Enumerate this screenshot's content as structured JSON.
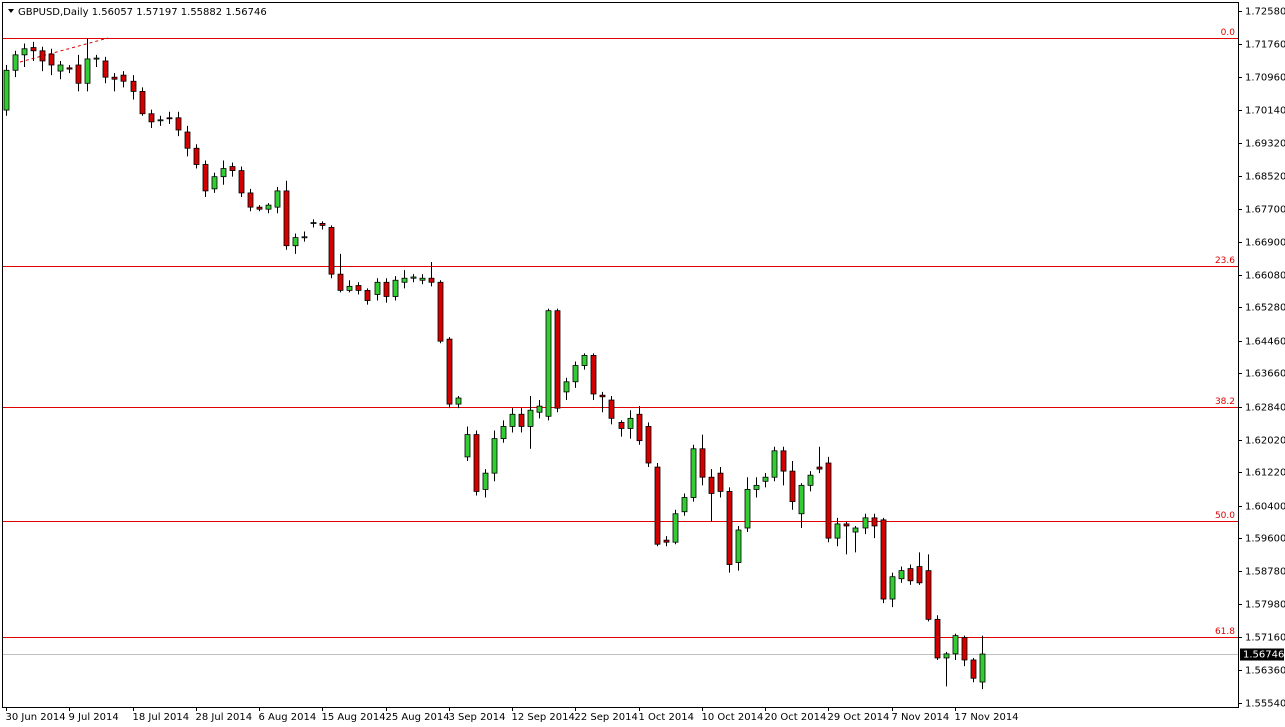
{
  "chart_data": {
    "type": "candlestick",
    "title": "GBPUSD,Daily",
    "header_values": [
      1.56057,
      1.57197,
      1.55882,
      1.56746
    ],
    "categories": [
      "30 Jun 2014",
      null,
      null,
      null,
      null,
      null,
      null,
      "9 Jul 2014",
      null,
      null,
      null,
      null,
      null,
      null,
      "18 Jul 2014",
      null,
      null,
      null,
      null,
      null,
      null,
      "28 Jul 2014",
      null,
      null,
      null,
      null,
      null,
      null,
      "6 Aug 2014",
      null,
      null,
      null,
      null,
      null,
      null,
      "15 Aug 2014",
      null,
      null,
      null,
      null,
      null,
      null,
      "25 Aug 2014",
      null,
      null,
      null,
      null,
      null,
      null,
      "3 Sep 2014",
      null,
      null,
      null,
      null,
      null,
      null,
      "12 Sep 2014",
      null,
      null,
      null,
      null,
      null,
      null,
      "22 Sep 2014",
      null,
      null,
      null,
      null,
      null,
      null,
      "1 Oct 2014",
      null,
      null,
      null,
      null,
      null,
      null,
      "10 Oct 2014",
      null,
      null,
      null,
      null,
      null,
      null,
      "20 Oct 2014",
      null,
      null,
      null,
      null,
      null,
      null,
      "29 Oct 2014",
      null,
      null,
      null,
      null,
      null,
      null,
      "7 Nov 2014",
      null,
      null,
      null,
      null,
      null,
      null,
      "17 Nov 2014",
      null,
      null,
      null
    ],
    "open": [
      1.7014,
      1.7112,
      1.715,
      1.7168,
      1.716,
      1.7152,
      1.711,
      1.7118,
      1.7125,
      1.708,
      1.714,
      1.7135,
      1.7095,
      1.71,
      1.7085,
      1.706,
      1.7005,
      1.6988,
      1.6995,
      1.6995,
      1.696,
      1.692,
      1.688,
      1.682,
      1.685,
      1.6875,
      1.6865,
      1.681,
      1.6775,
      1.677,
      1.6775,
      1.6815,
      1.668,
      1.67,
      1.6735,
      1.6735,
      1.6725,
      1.661,
      1.657,
      1.6582,
      1.657,
      1.656,
      1.659,
      1.6555,
      1.659,
      1.66,
      1.6595,
      1.66,
      1.659,
      1.645,
      1.629,
      1.616,
      1.6215,
      1.608,
      1.612,
      1.6205,
      1.6235,
      1.6265,
      1.6235,
      1.627,
      1.626,
      1.652,
      1.632,
      1.6345,
      1.6385,
      1.641,
      1.6312,
      1.63,
      1.6245,
      1.623,
      1.6265,
      1.6235,
      1.6135,
      1.5955,
      1.595,
      1.6025,
      1.606,
      1.618,
      1.611,
      1.612,
      1.6075,
      1.59,
      1.5985,
      1.608,
      1.61,
      1.611,
      1.6175,
      1.6125,
      1.602,
      1.609,
      1.6135,
      1.6145,
      1.596,
      1.5995,
      1.5975,
      1.5985,
      1.601,
      1.6005,
      1.581,
      1.586,
      1.5885,
      1.589,
      1.588,
      1.576,
      1.5665,
      1.5675,
      1.5715,
      1.566,
      1.56057
    ],
    "high": [
      1.7125,
      1.716,
      1.7178,
      1.7182,
      1.717,
      1.7165,
      1.7135,
      1.7125,
      1.715,
      1.7191,
      1.715,
      1.7145,
      1.7105,
      1.711,
      1.71,
      1.707,
      1.7015,
      1.7,
      1.701,
      1.701,
      1.6975,
      1.693,
      1.689,
      1.686,
      1.689,
      1.6885,
      1.6875,
      1.682,
      1.678,
      1.6785,
      1.6825,
      1.684,
      1.671,
      1.6715,
      1.6745,
      1.674,
      1.673,
      1.666,
      1.6595,
      1.659,
      1.6575,
      1.66,
      1.66,
      1.6605,
      1.662,
      1.661,
      1.661,
      1.664,
      1.6595,
      1.6455,
      1.631,
      1.6235,
      1.6225,
      1.613,
      1.6225,
      1.625,
      1.628,
      1.628,
      1.631,
      1.63,
      1.6525,
      1.6525,
      1.6355,
      1.6395,
      1.6415,
      1.6415,
      1.632,
      1.631,
      1.625,
      1.6275,
      1.6285,
      1.6245,
      1.6145,
      1.5965,
      1.603,
      1.607,
      1.619,
      1.6215,
      1.613,
      1.6135,
      1.6085,
      1.599,
      1.611,
      1.611,
      1.612,
      1.6185,
      1.6185,
      1.615,
      1.6095,
      1.6125,
      1.6185,
      1.616,
      1.601,
      1.6,
      1.599,
      1.602,
      1.602,
      1.601,
      1.5875,
      1.589,
      1.5895,
      1.5925,
      1.592,
      1.577,
      1.568,
      1.5725,
      1.572,
      1.5665,
      1.57197
    ],
    "low": [
      1.7,
      1.7095,
      1.712,
      1.7135,
      1.711,
      1.71,
      1.709,
      1.7105,
      1.706,
      1.706,
      1.712,
      1.708,
      1.706,
      1.707,
      1.704,
      1.7,
      1.697,
      1.6975,
      1.698,
      1.695,
      1.69,
      1.687,
      1.68,
      1.681,
      1.683,
      1.685,
      1.68,
      1.6765,
      1.6765,
      1.676,
      1.676,
      1.667,
      1.666,
      1.669,
      1.6725,
      1.672,
      1.66,
      1.6565,
      1.6565,
      1.656,
      1.6535,
      1.6545,
      1.654,
      1.6545,
      1.6575,
      1.659,
      1.6585,
      1.658,
      1.644,
      1.628,
      1.628,
      1.615,
      1.6065,
      1.606,
      1.61,
      1.6195,
      1.622,
      1.622,
      1.618,
      1.6255,
      1.625,
      1.627,
      1.63,
      1.633,
      1.6375,
      1.63,
      1.627,
      1.624,
      1.621,
      1.6205,
      1.619,
      1.6135,
      1.594,
      1.594,
      1.5945,
      1.6015,
      1.605,
      1.609,
      1.6,
      1.606,
      1.5875,
      1.588,
      1.5975,
      1.606,
      1.6085,
      1.61,
      1.609,
      1.603,
      1.5985,
      1.6075,
      1.612,
      1.595,
      1.594,
      1.592,
      1.5925,
      1.597,
      1.596,
      1.58,
      1.579,
      1.585,
      1.5845,
      1.5845,
      1.5755,
      1.566,
      1.5595,
      1.566,
      1.5645,
      1.5605,
      1.55882
    ],
    "close": [
      1.7112,
      1.715,
      1.7165,
      1.716,
      1.7135,
      1.7125,
      1.7125,
      1.7115,
      1.708,
      1.714,
      1.7142,
      1.7095,
      1.709,
      1.7085,
      1.706,
      1.7005,
      1.6985,
      1.699,
      1.6993,
      1.6965,
      1.692,
      1.688,
      1.6815,
      1.685,
      1.687,
      1.6865,
      1.681,
      1.6775,
      1.677,
      1.678,
      1.6815,
      1.668,
      1.67,
      1.6702,
      1.6737,
      1.673,
      1.661,
      1.657,
      1.658,
      1.657,
      1.6545,
      1.659,
      1.6555,
      1.6595,
      1.66,
      1.6603,
      1.66,
      1.659,
      1.6445,
      1.629,
      1.6305,
      1.6215,
      1.6075,
      1.612,
      1.6205,
      1.6235,
      1.6265,
      1.6235,
      1.6275,
      1.6285,
      1.652,
      1.628,
      1.6345,
      1.6385,
      1.641,
      1.6315,
      1.6308,
      1.6255,
      1.623,
      1.6255,
      1.62,
      1.6145,
      1.5945,
      1.595,
      1.602,
      1.606,
      1.618,
      1.611,
      1.607,
      1.6075,
      1.5895,
      1.598,
      1.608,
      1.609,
      1.611,
      1.6175,
      1.6125,
      1.605,
      1.609,
      1.6115,
      1.613,
      1.596,
      1.5995,
      1.599,
      1.5985,
      1.601,
      1.599,
      1.581,
      1.5865,
      1.588,
      1.5855,
      1.585,
      1.576,
      1.5665,
      1.5675,
      1.572,
      1.566,
      1.5615,
      1.56746
    ],
    "up_color": "#32cd32",
    "down_color": "#d40000",
    "ylim": [
      1.55442,
      1.72752
    ],
    "yticks": [
      {
        "value": 1.7258,
        "label": "1.72580"
      },
      {
        "value": 1.7176,
        "label": "1.71760"
      },
      {
        "value": 1.7096,
        "label": "1.70960"
      },
      {
        "value": 1.7014,
        "label": "1.70140"
      },
      {
        "value": 1.6932,
        "label": "1.69320"
      },
      {
        "value": 1.6852,
        "label": "1.68520"
      },
      {
        "value": 1.677,
        "label": "1.67700"
      },
      {
        "value": 1.669,
        "label": "1.66900"
      },
      {
        "value": 1.6608,
        "label": "1.66080"
      },
      {
        "value": 1.6528,
        "label": "1.65280"
      },
      {
        "value": 1.6446,
        "label": "1.64460"
      },
      {
        "value": 1.6366,
        "label": "1.63660"
      },
      {
        "value": 1.6284,
        "label": "1.62840"
      },
      {
        "value": 1.6202,
        "label": "1.62020"
      },
      {
        "value": 1.6122,
        "label": "1.61220"
      },
      {
        "value": 1.604,
        "label": "1.60400"
      },
      {
        "value": 1.596,
        "label": "1.59600"
      },
      {
        "value": 1.5878,
        "label": "1.58780"
      },
      {
        "value": 1.5798,
        "label": "1.57980"
      },
      {
        "value": 1.5716,
        "label": "1.57160"
      },
      {
        "value": 1.5636,
        "label": "1.56360"
      },
      {
        "value": 1.5554,
        "label": "1.55540"
      }
    ],
    "fib_levels": [
      {
        "name": "0.0",
        "value": 1.71915
      },
      {
        "name": "23.6",
        "value": 1.66301
      },
      {
        "name": "38.2",
        "value": 1.6283
      },
      {
        "name": "50.0",
        "value": 1.6002
      },
      {
        "name": "61.8",
        "value": 1.5717
      }
    ],
    "fib_color": "#e00000",
    "current_price": 1.56746
  }
}
